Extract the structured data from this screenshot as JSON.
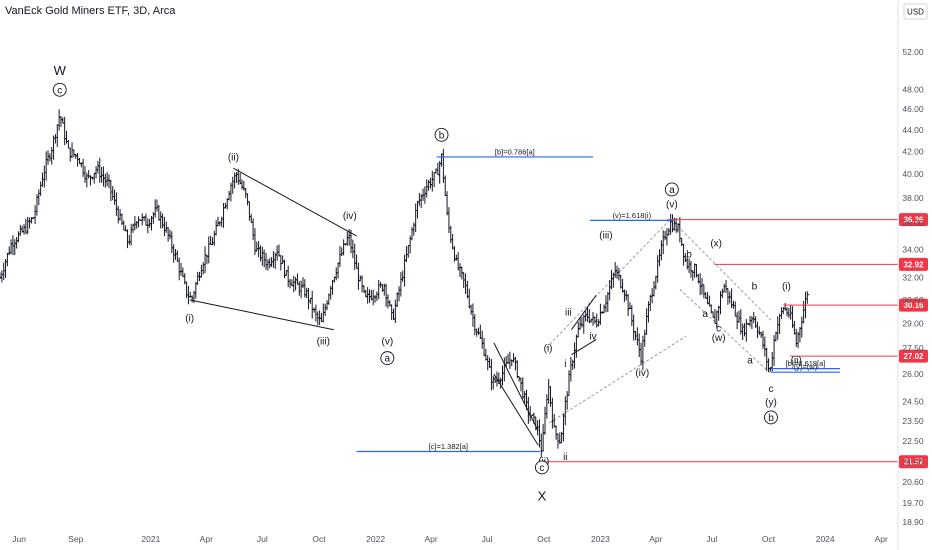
{
  "title": "VanEck Gold Miners ETF, 3D, Arca",
  "currency_button": "USD",
  "colors": {
    "bars": "#131722",
    "fib_blue": "#2962ff",
    "level_red": "#f23645",
    "channel": "#9aa0a6",
    "axis_text": "#50535e"
  },
  "chart_data": {
    "type": "ohlc",
    "title": "VanEck Gold Miners ETF, 3D, Arca",
    "xlabel": "",
    "ylabel": "",
    "ylim": [
      18.9,
      55.5
    ],
    "y_scale": "log",
    "xlim": [
      "2020-05-01",
      "2024-04-25"
    ],
    "y_ticks": [
      "52.00",
      "48.00",
      "46.00",
      "44.00",
      "42.00",
      "40.00",
      "38.00",
      "36.00",
      "34.00",
      "32.00",
      "30.50",
      "29.00",
      "27.50",
      "26.00",
      "24.50",
      "23.50",
      "22.50",
      "21.50",
      "20.60",
      "19.70",
      "18.90"
    ],
    "x_ticks": [
      {
        "label": "Jun",
        "date": "2020-06-01"
      },
      {
        "label": "Sep",
        "date": "2020-09-01"
      },
      {
        "label": "2021",
        "date": "2021-01-01"
      },
      {
        "label": "Apr",
        "date": "2021-04-01"
      },
      {
        "label": "Jul",
        "date": "2021-07-01"
      },
      {
        "label": "Oct",
        "date": "2021-10-01"
      },
      {
        "label": "2022",
        "date": "2022-01-01"
      },
      {
        "label": "Apr",
        "date": "2022-04-01"
      },
      {
        "label": "Jul",
        "date": "2022-07-01"
      },
      {
        "label": "Oct",
        "date": "2022-10-01"
      },
      {
        "label": "2023",
        "date": "2023-01-01"
      },
      {
        "label": "Apr",
        "date": "2023-04-01"
      },
      {
        "label": "Jul",
        "date": "2023-07-01"
      },
      {
        "label": "Oct",
        "date": "2023-10-01"
      },
      {
        "label": "2024",
        "date": "2024-01-01"
      },
      {
        "label": "Apr",
        "date": "2024-04-01"
      }
    ],
    "price_path": [
      [
        "2020-05-01",
        32.0
      ],
      [
        "2020-05-20",
        34.5
      ],
      [
        "2020-06-10",
        35.5
      ],
      [
        "2020-06-25",
        36.5
      ],
      [
        "2020-07-10",
        40.0
      ],
      [
        "2020-07-25",
        42.5
      ],
      [
        "2020-08-06",
        45.5
      ],
      [
        "2020-08-20",
        42.0
      ],
      [
        "2020-09-05",
        41.5
      ],
      [
        "2020-09-20",
        39.5
      ],
      [
        "2020-10-05",
        40.5
      ],
      [
        "2020-10-25",
        39.0
      ],
      [
        "2020-11-10",
        36.5
      ],
      [
        "2020-11-25",
        34.5
      ],
      [
        "2020-12-10",
        36.5
      ],
      [
        "2020-12-25",
        36.0
      ],
      [
        "2021-01-10",
        37.0
      ],
      [
        "2021-01-25",
        35.5
      ],
      [
        "2021-02-10",
        33.5
      ],
      [
        "2021-02-28",
        31.0
      ],
      [
        "2021-03-08",
        30.5
      ],
      [
        "2021-03-25",
        33.0
      ],
      [
        "2021-04-10",
        34.5
      ],
      [
        "2021-04-25",
        36.5
      ],
      [
        "2021-05-10",
        39.0
      ],
      [
        "2021-05-20",
        40.0
      ],
      [
        "2021-06-05",
        38.0
      ],
      [
        "2021-06-20",
        34.0
      ],
      [
        "2021-07-10",
        33.0
      ],
      [
        "2021-07-25",
        34.0
      ],
      [
        "2021-08-10",
        32.0
      ],
      [
        "2021-08-25",
        31.5
      ],
      [
        "2021-09-10",
        31.0
      ],
      [
        "2021-09-25",
        29.5
      ],
      [
        "2021-10-05",
        29.0
      ],
      [
        "2021-10-20",
        31.5
      ],
      [
        "2021-11-05",
        33.5
      ],
      [
        "2021-11-18",
        35.0
      ],
      [
        "2021-12-01",
        32.5
      ],
      [
        "2021-12-15",
        30.5
      ],
      [
        "2021-12-30",
        31.0
      ],
      [
        "2022-01-15",
        31.5
      ],
      [
        "2022-01-28",
        29.2
      ],
      [
        "2022-02-10",
        31.5
      ],
      [
        "2022-02-25",
        34.5
      ],
      [
        "2022-03-10",
        37.5
      ],
      [
        "2022-03-25",
        39.0
      ],
      [
        "2022-04-10",
        40.0
      ],
      [
        "2022-04-18",
        41.5
      ],
      [
        "2022-04-28",
        36.0
      ],
      [
        "2022-05-12",
        33.0
      ],
      [
        "2022-05-26",
        31.5
      ],
      [
        "2022-06-10",
        29.0
      ],
      [
        "2022-06-25",
        27.5
      ],
      [
        "2022-07-10",
        25.5
      ],
      [
        "2022-07-25",
        26.0
      ],
      [
        "2022-08-10",
        27.0
      ],
      [
        "2022-08-20",
        26.0
      ],
      [
        "2022-09-05",
        24.0
      ],
      [
        "2022-09-20",
        23.2
      ],
      [
        "2022-09-28",
        22.0
      ],
      [
        "2022-10-08",
        25.5
      ],
      [
        "2022-10-18",
        23.0
      ],
      [
        "2022-10-28",
        22.5
      ],
      [
        "2022-11-10",
        25.5
      ],
      [
        "2022-11-25",
        28.5
      ],
      [
        "2022-12-10",
        29.5
      ],
      [
        "2022-12-25",
        29.0
      ],
      [
        "2023-01-10",
        30.5
      ],
      [
        "2023-01-25",
        32.5
      ],
      [
        "2023-02-10",
        31.0
      ],
      [
        "2023-02-25",
        28.5
      ],
      [
        "2023-03-08",
        27.0
      ],
      [
        "2023-03-20",
        30.0
      ],
      [
        "2023-04-05",
        33.0
      ],
      [
        "2023-04-15",
        35.0
      ],
      [
        "2023-04-25",
        36.0
      ],
      [
        "2023-05-08",
        35.5
      ],
      [
        "2023-05-20",
        33.0
      ],
      [
        "2023-06-05",
        32.5
      ],
      [
        "2023-06-20",
        30.5
      ],
      [
        "2023-07-05",
        29.0
      ],
      [
        "2023-07-20",
        31.5
      ],
      [
        "2023-08-05",
        30.0
      ],
      [
        "2023-08-20",
        28.5
      ],
      [
        "2023-09-05",
        29.5
      ],
      [
        "2023-09-20",
        28.0
      ],
      [
        "2023-10-03",
        26.0
      ],
      [
        "2023-10-12",
        28.5
      ],
      [
        "2023-10-25",
        30.0
      ],
      [
        "2023-11-05",
        29.5
      ],
      [
        "2023-11-15",
        27.8
      ],
      [
        "2023-11-25",
        29.5
      ],
      [
        "2023-12-03",
        31.0
      ]
    ]
  },
  "levels": [
    {
      "price": "36.26",
      "color": "#f23645",
      "start": "2023-04-20"
    },
    {
      "price": "32.92",
      "color": "#f23645",
      "start": "2023-07-05"
    },
    {
      "price": "30.16",
      "color": "#f23645",
      "start": "2023-10-25"
    },
    {
      "price": "27.02",
      "color": "#f23645",
      "start": "2023-11-05"
    },
    {
      "price": "21.52",
      "color": "#f23645",
      "start": "2022-10-05"
    }
  ],
  "fib_labels": [
    {
      "text": "[b]=0.786[a]",
      "price": 41.5,
      "start": "2022-04-10",
      "end": "2022-12-20"
    },
    {
      "text": "[c]=1.382[a]",
      "price": 22.0,
      "start": "2021-12-01",
      "end": "2022-09-25"
    },
    {
      "text": "(v)=1.618(i)",
      "price": 36.2,
      "start": "2022-12-15",
      "end": "2023-04-30"
    },
    {
      "text": "[b]=0.618[a]",
      "price": 26.3,
      "start": "2023-10-05",
      "end": "2024-01-25"
    },
    {
      "text": "(y)=(w)",
      "price": 26.1,
      "start": "2023-10-05",
      "end": "2024-01-25"
    }
  ],
  "wave_labels": [
    {
      "text": "W",
      "date": "2020-08-06",
      "price": 49.5,
      "big": true
    },
    {
      "text": "c",
      "date": "2020-08-06",
      "price": 47.6,
      "circle": true
    },
    {
      "text": "(i)",
      "date": "2021-03-05",
      "price": 29.1
    },
    {
      "text": "(ii)",
      "date": "2021-05-15",
      "price": 41.2
    },
    {
      "text": "(iii)",
      "date": "2021-10-08",
      "price": 27.7
    },
    {
      "text": "(iv)",
      "date": "2021-11-20",
      "price": 36.3
    },
    {
      "text": "(v)",
      "date": "2022-01-20",
      "price": 27.7
    },
    {
      "text": "a",
      "date": "2022-01-20",
      "price": 26.7,
      "circle": true
    },
    {
      "text": "b",
      "date": "2022-04-18",
      "price": 43.2,
      "circle": true
    },
    {
      "text": "(i)",
      "date": "2022-10-08",
      "price": 27.3
    },
    {
      "text": "i",
      "date": "2022-11-05",
      "price": 26.4
    },
    {
      "text": "ii",
      "date": "2022-11-05",
      "price": 21.6
    },
    {
      "text": "(ii)",
      "date": "2022-10-01",
      "price": 21.4
    },
    {
      "text": "iii",
      "date": "2022-11-10",
      "price": 29.5
    },
    {
      "text": "iv",
      "date": "2022-12-20",
      "price": 28.0
    },
    {
      "text": "(iii)",
      "date": "2023-01-10",
      "price": 34.8
    },
    {
      "text": "(iv)",
      "date": "2023-03-10",
      "price": 25.9
    },
    {
      "text": "(v)",
      "date": "2023-04-27",
      "price": 37.2
    },
    {
      "text": "a",
      "date": "2023-04-27",
      "price": 38.4,
      "circle": true
    },
    {
      "text": "b",
      "date": "2023-05-25",
      "price": 33.4
    },
    {
      "text": "(x)",
      "date": "2023-07-08",
      "price": 34.2
    },
    {
      "text": "a",
      "date": "2023-06-20",
      "price": 29.4
    },
    {
      "text": "c",
      "date": "2023-07-12",
      "price": 28.5
    },
    {
      "text": "(w)",
      "date": "2023-07-12",
      "price": 27.9
    },
    {
      "text": "b",
      "date": "2023-09-08",
      "price": 31.2
    },
    {
      "text": "a",
      "date": "2023-09-01",
      "price": 26.6
    },
    {
      "text": "(i)",
      "date": "2023-10-30",
      "price": 31.2
    },
    {
      "text": "(ii)",
      "date": "2023-11-15",
      "price": 26.6
    },
    {
      "text": "c",
      "date": "2023-10-05",
      "price": 25.0
    },
    {
      "text": "(y)",
      "date": "2023-10-05",
      "price": 24.3
    },
    {
      "text": "b",
      "date": "2023-10-05",
      "price": 23.5,
      "circle": true
    },
    {
      "text": "c",
      "date": "2022-09-28",
      "price": 21.1,
      "circle": true
    },
    {
      "text": "X",
      "date": "2022-09-28",
      "price": 19.8,
      "big": true
    }
  ],
  "trendlines": [
    {
      "from": [
        "2021-03-05",
        30.5
      ],
      "to": [
        "2021-10-25",
        28.6
      ],
      "kind": "wedge"
    },
    {
      "from": [
        "2021-05-15",
        40.5
      ],
      "to": [
        "2021-12-01",
        35.0
      ],
      "kind": "wedge"
    },
    {
      "from": [
        "2022-10-10",
        23.4
      ],
      "to": [
        "2023-05-20",
        28.2
      ],
      "kind": "channel"
    },
    {
      "from": [
        "2022-10-05",
        27.5
      ],
      "to": [
        "2023-04-25",
        36.3
      ],
      "kind": "channel"
    },
    {
      "from": [
        "2023-04-25",
        36.3
      ],
      "to": [
        "2023-10-05",
        29.2
      ],
      "kind": "channel"
    },
    {
      "from": [
        "2023-05-10",
        31.2
      ],
      "to": [
        "2023-10-05",
        26.0
      ],
      "kind": "channel"
    },
    {
      "from": [
        "2022-07-12",
        27.8
      ],
      "to": [
        "2022-09-22",
        23.0
      ],
      "kind": "wedge"
    },
    {
      "from": [
        "2022-07-12",
        26.0
      ],
      "to": [
        "2022-09-22",
        22.3
      ],
      "kind": "wedge"
    },
    {
      "from": [
        "2022-11-15",
        28.6
      ],
      "to": [
        "2022-12-25",
        30.8
      ],
      "kind": "wedge"
    },
    {
      "from": [
        "2022-11-15",
        27.1
      ],
      "to": [
        "2022-12-25",
        28.0
      ],
      "kind": "wedge"
    }
  ]
}
